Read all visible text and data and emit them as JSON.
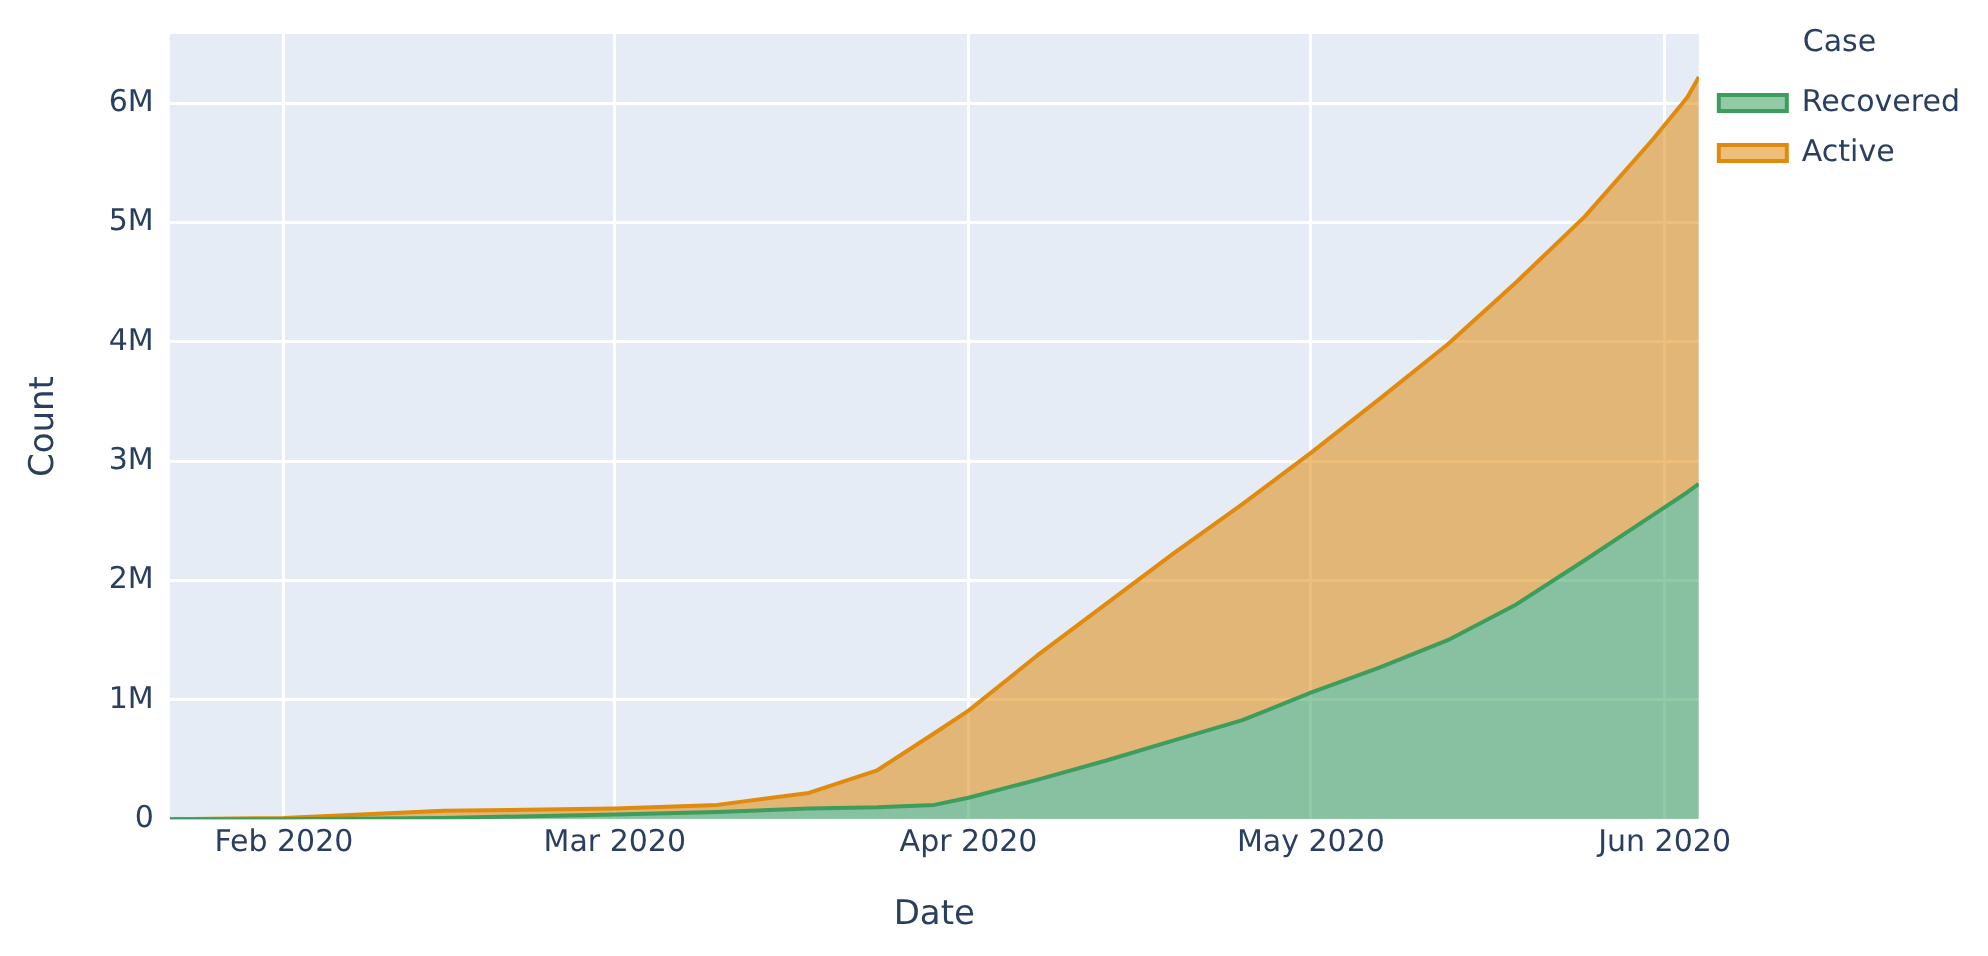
{
  "chart_data": {
    "type": "area",
    "xlabel": "Date",
    "ylabel": "Count",
    "legend_title": "Case",
    "legend": "top right",
    "grid": true,
    "stacked": true,
    "marker": "none",
    "x": [
      "2020-01-22",
      "2020-02-01",
      "2020-02-15",
      "2020-03-01",
      "2020-03-10",
      "2020-03-18",
      "2020-03-24",
      "2020-03-29",
      "2020-04-01",
      "2020-04-07",
      "2020-04-13",
      "2020-04-19",
      "2020-04-25",
      "2020-05-01",
      "2020-05-07",
      "2020-05-13",
      "2020-05-19",
      "2020-05-25",
      "2020-05-31",
      "2020-06-03",
      "2020-06-04"
    ],
    "series": [
      {
        "name": "Recovered",
        "color": "#3d9d5c",
        "values": [
          0,
          0,
          10000,
          40000,
          60000,
          90000,
          100000,
          120000,
          180000,
          330000,
          490000,
          660000,
          830000,
          1060000,
          1270000,
          1500000,
          1800000,
          2170000,
          2550000,
          2740000,
          2810000
        ]
      },
      {
        "name": "Active",
        "color": "#e08a0e",
        "values": [
          0,
          10000,
          60000,
          50000,
          60000,
          130000,
          310000,
          600000,
          730000,
          1040000,
          1310000,
          1570000,
          1810000,
          2010000,
          2250000,
          2480000,
          2700000,
          2880000,
          3150000,
          3310000,
          3410000
        ]
      }
    ],
    "xlim": [
      "2020-01-22",
      "2020-06-04"
    ],
    "xticks": [
      {
        "value": "2020-02-01",
        "label": "Feb 2020"
      },
      {
        "value": "2020-03-01",
        "label": "Mar 2020"
      },
      {
        "value": "2020-04-01",
        "label": "Apr 2020"
      },
      {
        "value": "2020-05-01",
        "label": "May 2020"
      },
      {
        "value": "2020-06-01",
        "label": "Jun 2020"
      }
    ],
    "ylim": [
      0,
      6580000
    ],
    "yticks": [
      0,
      {
        "value": 1000000,
        "label": "1M"
      },
      {
        "value": 2000000,
        "label": "2M"
      },
      {
        "value": 3000000,
        "label": "3M"
      },
      {
        "value": 4000000,
        "label": "4M"
      },
      {
        "value": 5000000,
        "label": "5M"
      },
      {
        "value": 6000000,
        "label": "6M"
      }
    ]
  }
}
